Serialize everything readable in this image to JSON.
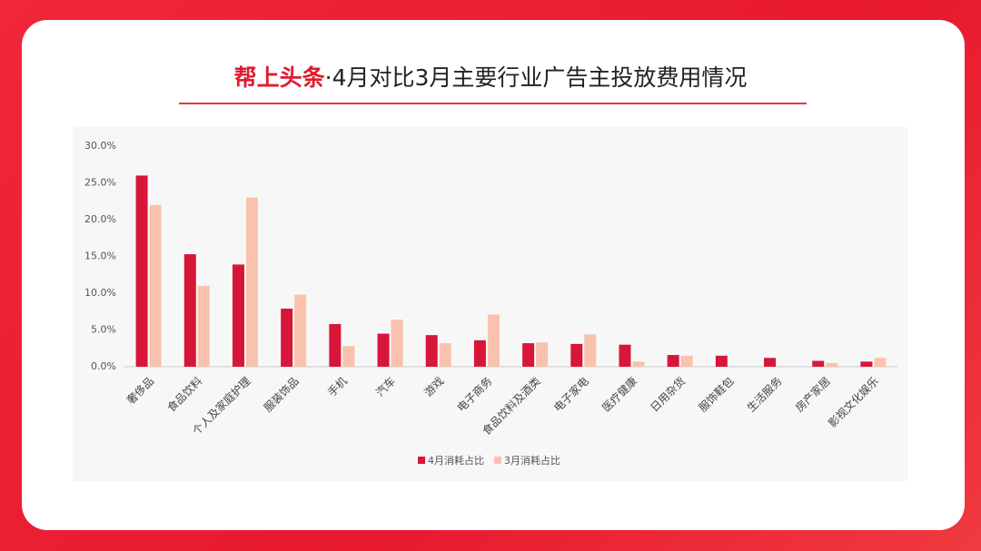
{
  "header": {
    "brand": "帮上头条",
    "title": "·4月对比3月主要行业广告主投放费用情况"
  },
  "chart_data": {
    "type": "bar",
    "categories": [
      "奢侈品",
      "食品饮料",
      "个人及家庭护理",
      "服装饰品",
      "手机",
      "汽车",
      "游戏",
      "电子商务",
      "食品饮料及酒类",
      "电子家电",
      "医疗健康",
      "日用杂货",
      "服饰鞋包",
      "生活服务",
      "房产家居",
      "影视文化娱乐"
    ],
    "series": [
      {
        "name": "4月消耗占比",
        "color": "#d7163a",
        "values": [
          26.0,
          15.3,
          13.9,
          7.9,
          5.8,
          4.5,
          4.3,
          3.6,
          3.2,
          3.1,
          3.0,
          1.6,
          1.5,
          1.2,
          0.8,
          0.7
        ]
      },
      {
        "name": "3月消耗占比",
        "color": "#f9c2ad",
        "values": [
          22.0,
          11.0,
          23.0,
          9.8,
          2.8,
          6.4,
          3.2,
          7.1,
          3.3,
          4.4,
          0.7,
          1.5,
          0,
          0,
          0.5,
          1.2
        ]
      }
    ],
    "ylim": [
      0,
      30
    ],
    "yticks": [
      {
        "value": 0,
        "label": "0.0%"
      },
      {
        "value": 5,
        "label": "5.0%"
      },
      {
        "value": 10,
        "label": "10.0%"
      },
      {
        "value": 15,
        "label": "15.0%"
      },
      {
        "value": 20,
        "label": "20.0%"
      },
      {
        "value": 25,
        "label": "25.0%"
      },
      {
        "value": 30,
        "label": "30.0%"
      }
    ],
    "legend": "bottom"
  }
}
